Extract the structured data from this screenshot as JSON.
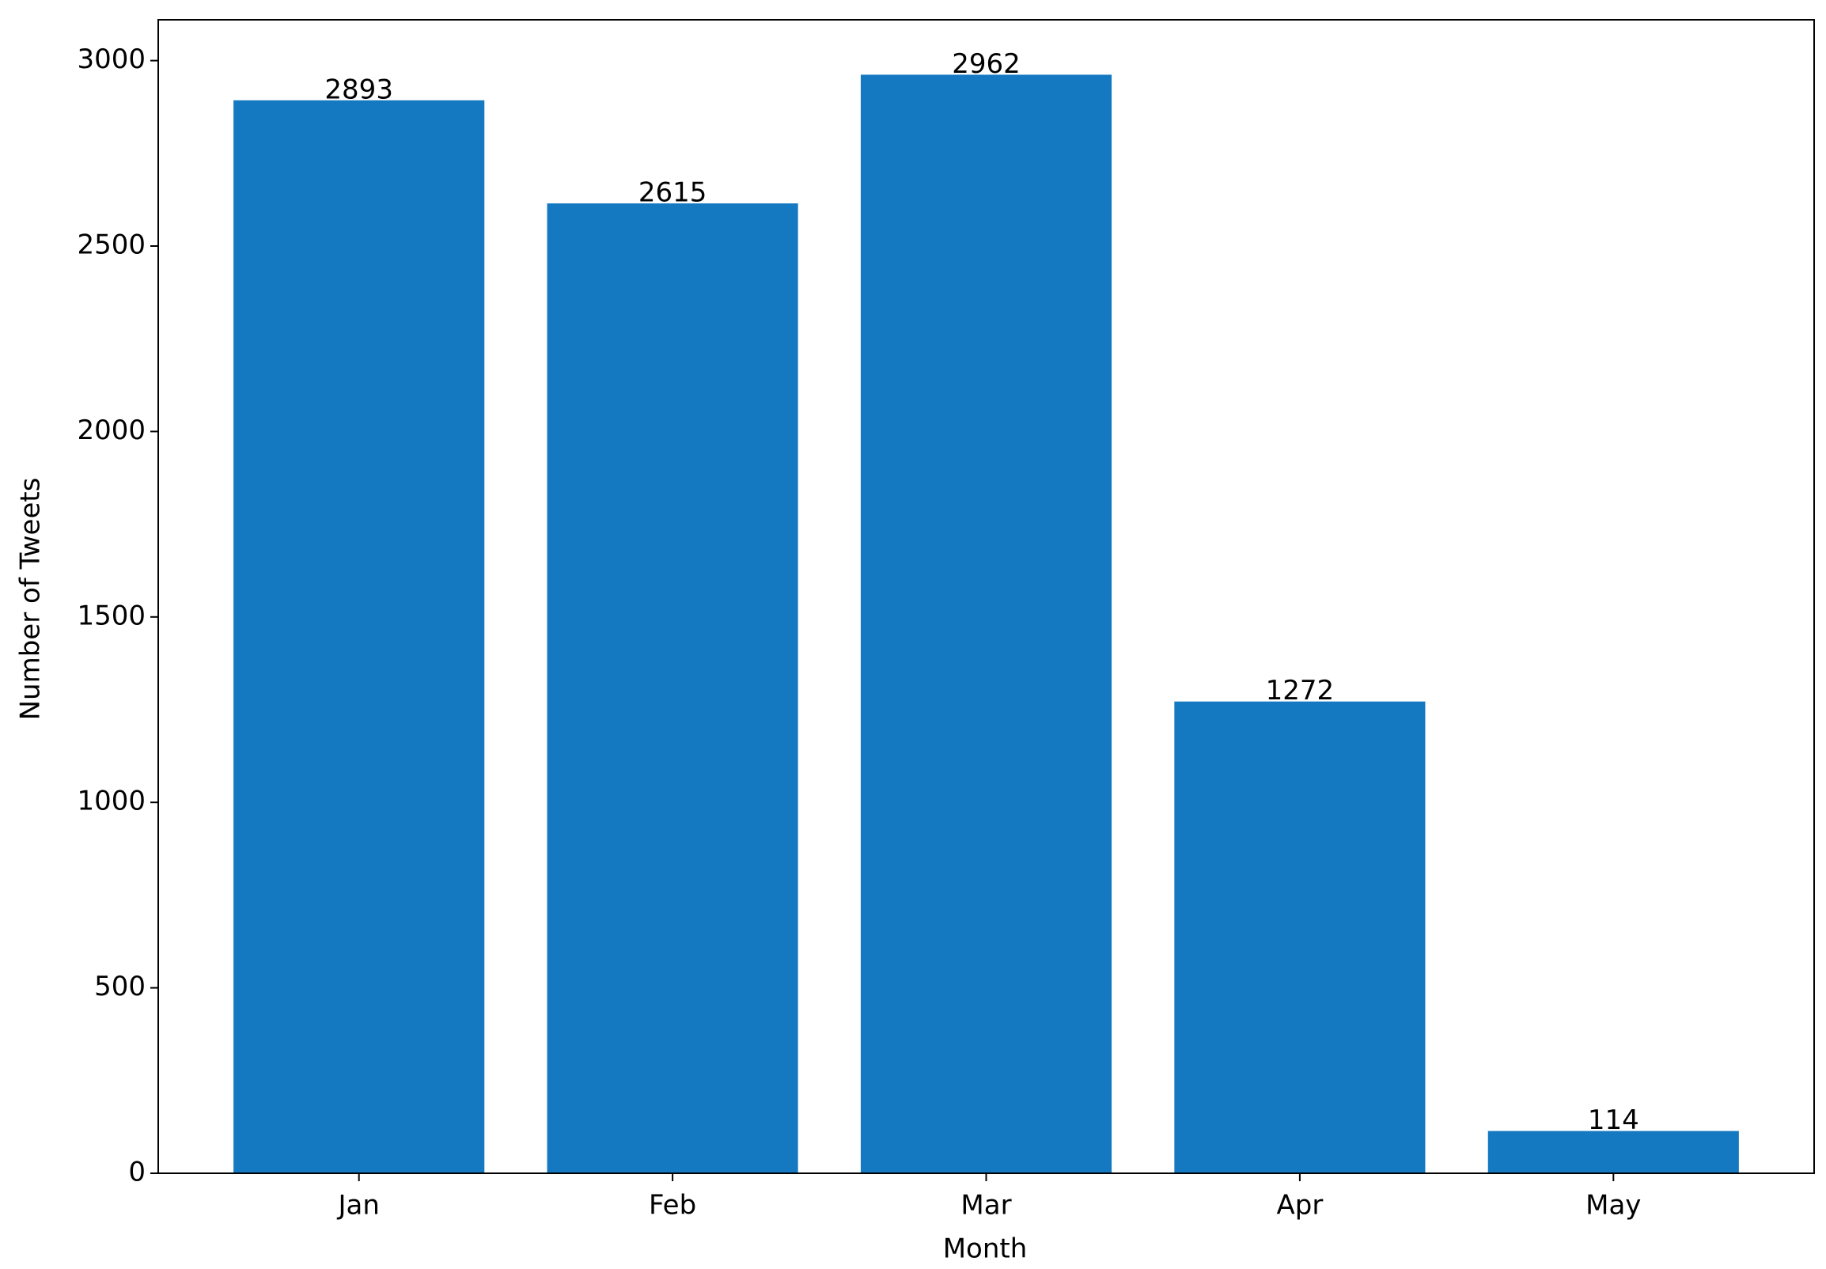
{
  "chart_data": {
    "type": "bar",
    "x_label": "Month",
    "y_label": "Number of Tweets",
    "categories": [
      "Jan",
      "Feb",
      "Mar",
      "Apr",
      "May"
    ],
    "values": [
      2893,
      2615,
      2962,
      1272,
      114
    ],
    "color": "#1479c1",
    "ylim": [
      0,
      3110.1
    ],
    "yticks": [
      0,
      500,
      1000,
      1500,
      2000,
      2500,
      3000
    ],
    "grid": false
  }
}
